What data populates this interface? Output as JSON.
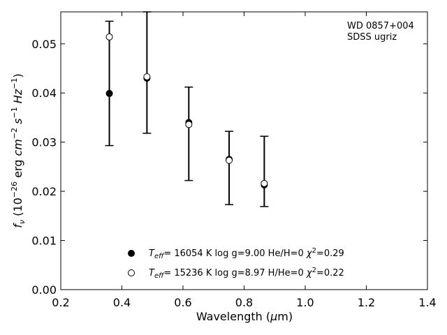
{
  "chart_data": {
    "type": "scatter",
    "title": "",
    "xlabel": "Wavelength (μm)",
    "ylabel": "f_ν (10^-26 erg cm^-2 s^-1 Hz^-1)",
    "xlim": [
      0.2,
      1.4
    ],
    "ylim": [
      0.0,
      0.0565
    ],
    "xticks": [
      "0.2",
      "0.4",
      "0.6",
      "0.8",
      "1.0",
      "1.2",
      "1.4"
    ],
    "yticks": [
      "0.00",
      "0.01",
      "0.02",
      "0.03",
      "0.04",
      "0.05"
    ],
    "grid": false,
    "legend_position": "bottom-center",
    "annotation": [
      "WD 0857+004",
      "SDSS ugriz"
    ],
    "errorbars": [
      {
        "x": 0.359,
        "low": 0.0293,
        "high": 0.0546
      },
      {
        "x": 0.482,
        "low": 0.0318,
        "high": 0.0565
      },
      {
        "x": 0.619,
        "low": 0.0222,
        "high": 0.0412
      },
      {
        "x": 0.751,
        "low": 0.0173,
        "high": 0.0322
      },
      {
        "x": 0.866,
        "low": 0.0169,
        "high": 0.0312
      }
    ],
    "series": [
      {
        "name": "T_eff= 16054 K  log g=9.00  He/H=0  χ²=0.29",
        "marker": "filled-circle",
        "x": [
          0.359,
          0.482,
          0.619,
          0.751,
          0.866
        ],
        "y": [
          0.0399,
          0.043,
          0.034,
          0.0265,
          0.0213
        ]
      },
      {
        "name": "T_eff= 15236 K  log g=8.97  H/He=0  χ²=0.22",
        "marker": "open-circle",
        "x": [
          0.359,
          0.482,
          0.619,
          0.751,
          0.866
        ],
        "y": [
          0.0514,
          0.0433,
          0.0336,
          0.0263,
          0.0216
        ]
      }
    ]
  }
}
